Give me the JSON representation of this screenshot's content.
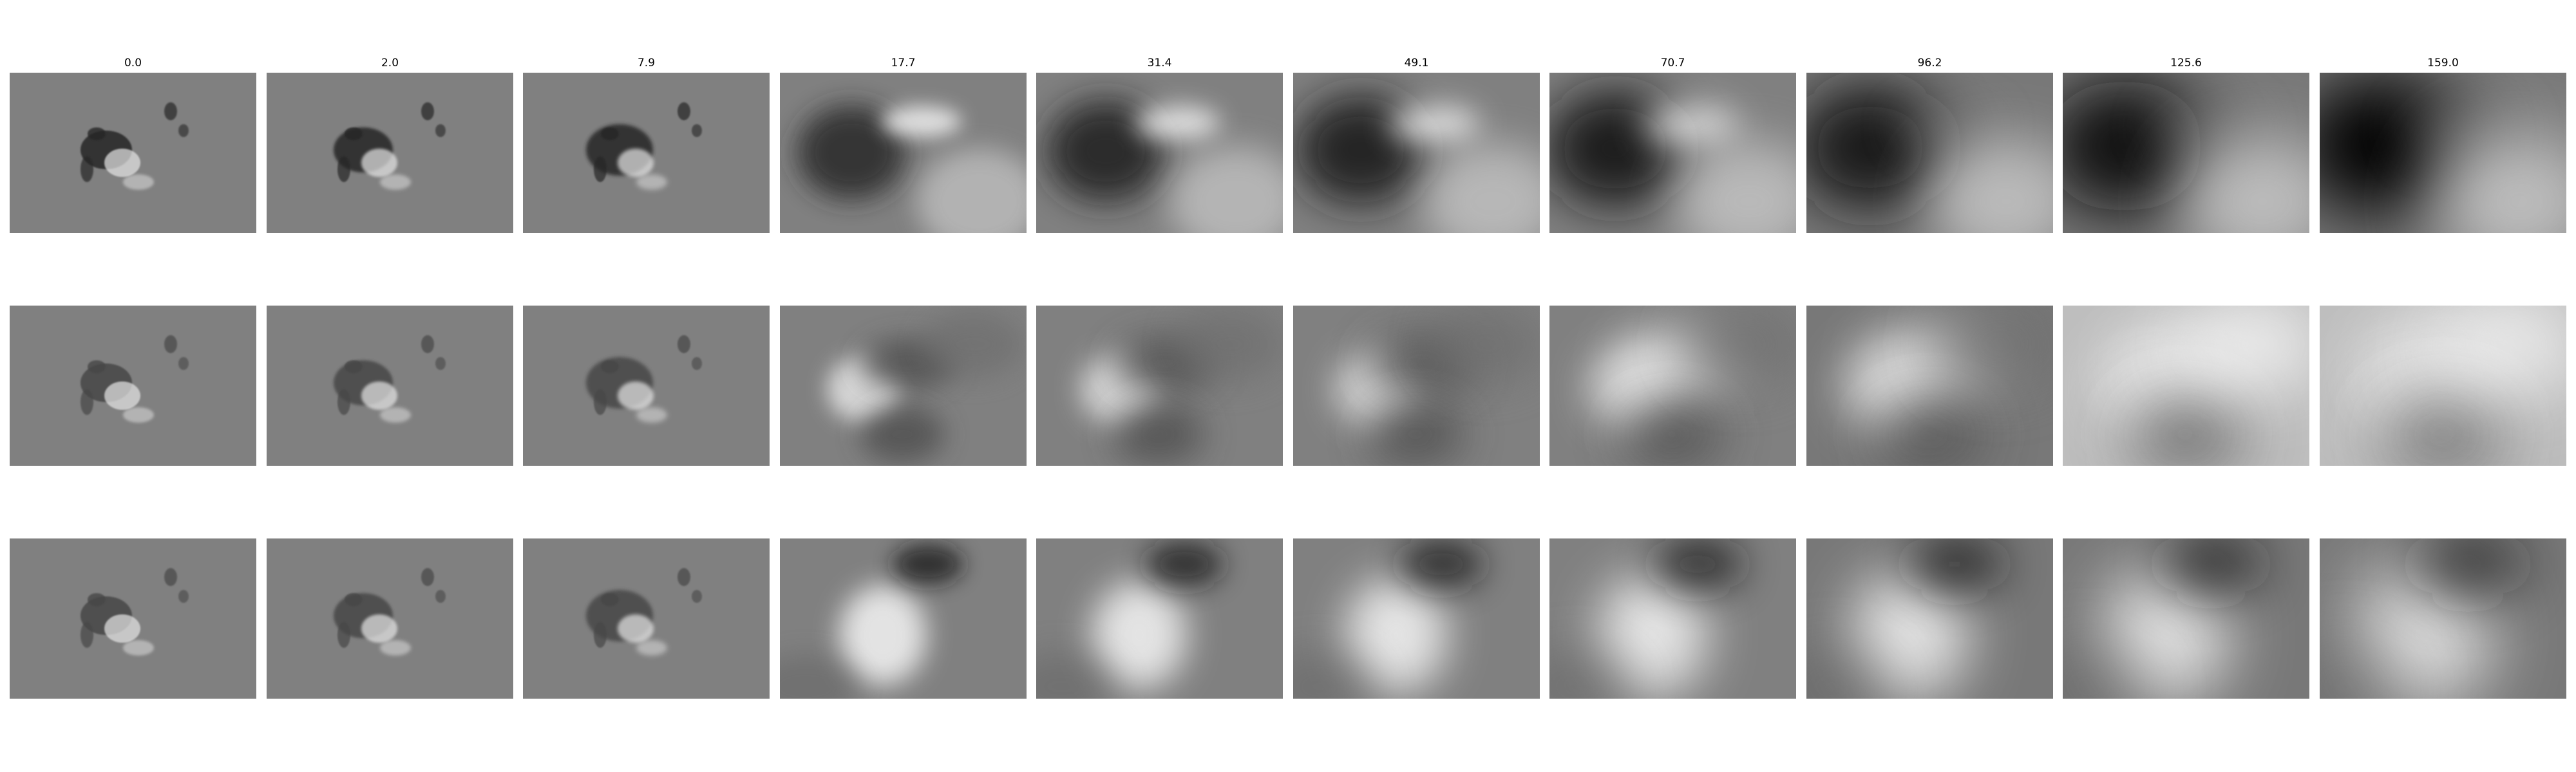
{
  "figure": {
    "column_titles": [
      "0.0",
      "2.0",
      "7.9",
      "17.7",
      "31.4",
      "49.1",
      "70.7",
      "96.2",
      "125.6",
      "159.0"
    ],
    "rows": 3,
    "colormap": "grayscale",
    "colors": {
      "background": "#ffffff",
      "mid_gray": "#808080"
    }
  }
}
